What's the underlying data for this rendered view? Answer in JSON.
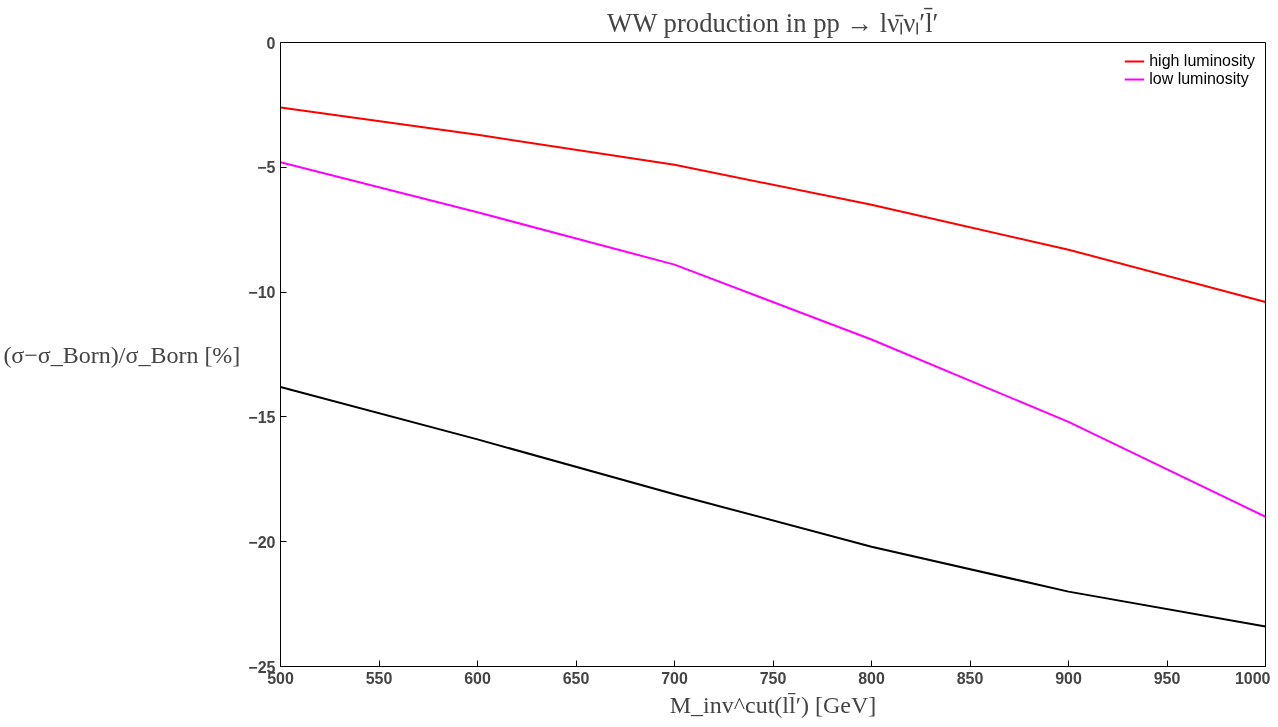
{
  "chart_data": {
    "type": "line",
    "title": "WW production in pp → lν̄ₗνₗ′l̄′",
    "xlabel": "M_inv^cut(ll̄′) [GeV]",
    "ylabel": "(σ−σ_Born)/σ_Born [%]",
    "x": [
      500,
      600,
      700,
      800,
      900,
      1000
    ],
    "series": [
      {
        "name": "high luminosity",
        "color": "#ff0000",
        "values": [
          -2.6,
          -3.7,
          -4.9,
          -6.5,
          -8.3,
          -10.4
        ]
      },
      {
        "name": "low luminosity",
        "color": "#ff00ff",
        "values": [
          -4.8,
          -6.8,
          -8.9,
          -11.9,
          -15.2,
          -19.0
        ]
      },
      {
        "color": "#000000",
        "values": [
          -13.8,
          -15.9,
          -18.1,
          -20.2,
          -22.0,
          -23.4
        ]
      }
    ],
    "xlim": [
      500,
      1000
    ],
    "xticks": [
      500,
      550,
      600,
      650,
      700,
      750,
      800,
      850,
      900,
      950,
      1000
    ],
    "ylim": [
      -25,
      0
    ],
    "yticks": [
      -25,
      -20,
      -15,
      -10,
      -5,
      0
    ],
    "grid": false,
    "legend": "top right",
    "marker": "none",
    "line_style": "solid"
  }
}
